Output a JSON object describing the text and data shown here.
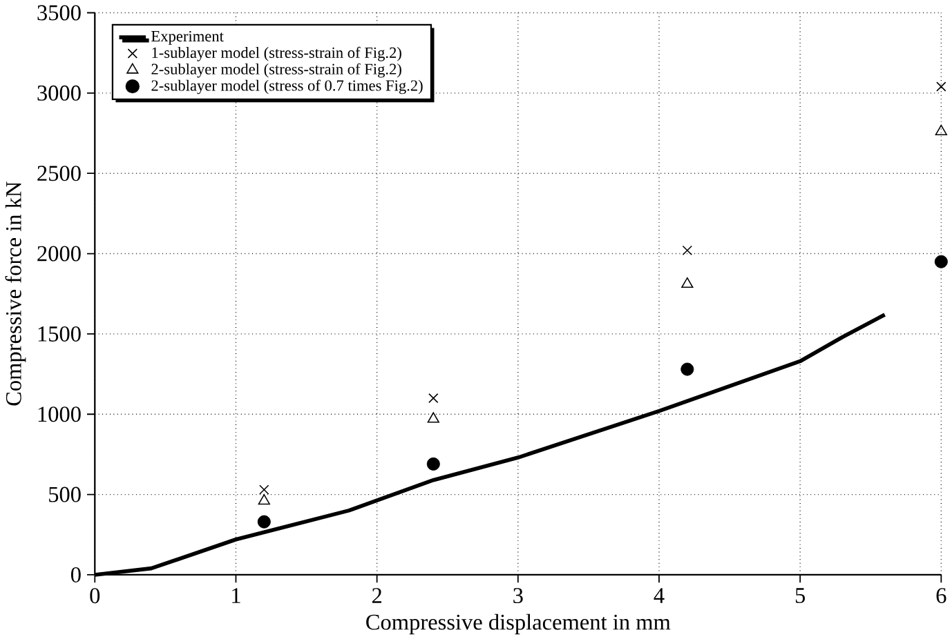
{
  "chart_data": {
    "type": "scatter",
    "xlabel": "Compressive displacement in mm",
    "ylabel": "Compressive force in kN",
    "xlim": [
      0,
      6
    ],
    "ylim": [
      0,
      3500
    ],
    "xticks": [
      0,
      1,
      2,
      3,
      4,
      5,
      6
    ],
    "yticks": [
      0,
      500,
      1000,
      1500,
      2000,
      2500,
      3000,
      3500
    ],
    "grid": true,
    "legend": "top left",
    "series": [
      {
        "name": "Experiment",
        "type": "line",
        "marker": "none",
        "line_style": "solid",
        "color": "#000000",
        "x": [
          0,
          0.4,
          1,
          1.8,
          2.4,
          3,
          4,
          5,
          5.3,
          5.6
        ],
        "values": [
          0,
          40,
          220,
          400,
          590,
          730,
          1020,
          1330,
          1480,
          1620
        ]
      },
      {
        "name": "1-sublayer model (stress-strain of Fig.2)",
        "marker": "cross",
        "color": "#000000",
        "x": [
          1.2,
          2.4,
          4.2,
          6
        ],
        "values": [
          530,
          1100,
          2020,
          3040
        ]
      },
      {
        "name": "2-sublayer model (stress-strain of Fig.2)",
        "marker": "triangle",
        "color": "#000000",
        "x": [
          1.2,
          2.4,
          4.2,
          6
        ],
        "values": [
          460,
          970,
          1810,
          2760
        ]
      },
      {
        "name": "2-sublayer model (stress of 0.7 times Fig.2)",
        "marker": "circle",
        "color": "#000000",
        "x": [
          1.2,
          2.4,
          4.2,
          6
        ],
        "values": [
          330,
          690,
          1280,
          1950
        ]
      }
    ]
  }
}
